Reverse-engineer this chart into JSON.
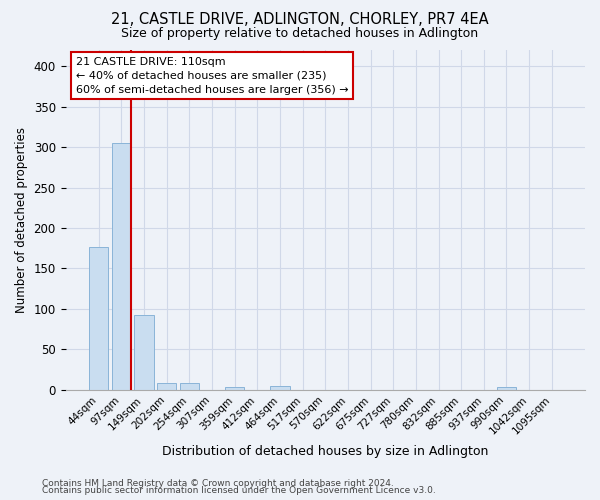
{
  "title": "21, CASTLE DRIVE, ADLINGTON, CHORLEY, PR7 4EA",
  "subtitle": "Size of property relative to detached houses in Adlington",
  "xlabel": "Distribution of detached houses by size in Adlington",
  "ylabel": "Number of detached properties",
  "footnote1": "Contains HM Land Registry data © Crown copyright and database right 2024.",
  "footnote2": "Contains public sector information licensed under the Open Government Licence v3.0.",
  "bar_color": "#c9ddf0",
  "bar_edge_color": "#8ab4d8",
  "grid_color": "#d0d8e8",
  "bg_color": "#eef2f8",
  "annotation_box_color": "#cc0000",
  "vline_color": "#cc0000",
  "bins": [
    "44sqm",
    "97sqm",
    "149sqm",
    "202sqm",
    "254sqm",
    "307sqm",
    "359sqm",
    "412sqm",
    "464sqm",
    "517sqm",
    "570sqm",
    "622sqm",
    "675sqm",
    "727sqm",
    "780sqm",
    "832sqm",
    "885sqm",
    "937sqm",
    "990sqm",
    "1042sqm",
    "1095sqm"
  ],
  "values": [
    176,
    305,
    92,
    8,
    9,
    0,
    3,
    0,
    5,
    0,
    0,
    0,
    0,
    0,
    0,
    0,
    0,
    0,
    3,
    0,
    0
  ],
  "property_bin_index": 1,
  "annotation_text": "21 CASTLE DRIVE: 110sqm\n← 40% of detached houses are smaller (235)\n60% of semi-detached houses are larger (356) →",
  "ylim": [
    0,
    420
  ],
  "yticks": [
    0,
    50,
    100,
    150,
    200,
    250,
    300,
    350,
    400
  ]
}
